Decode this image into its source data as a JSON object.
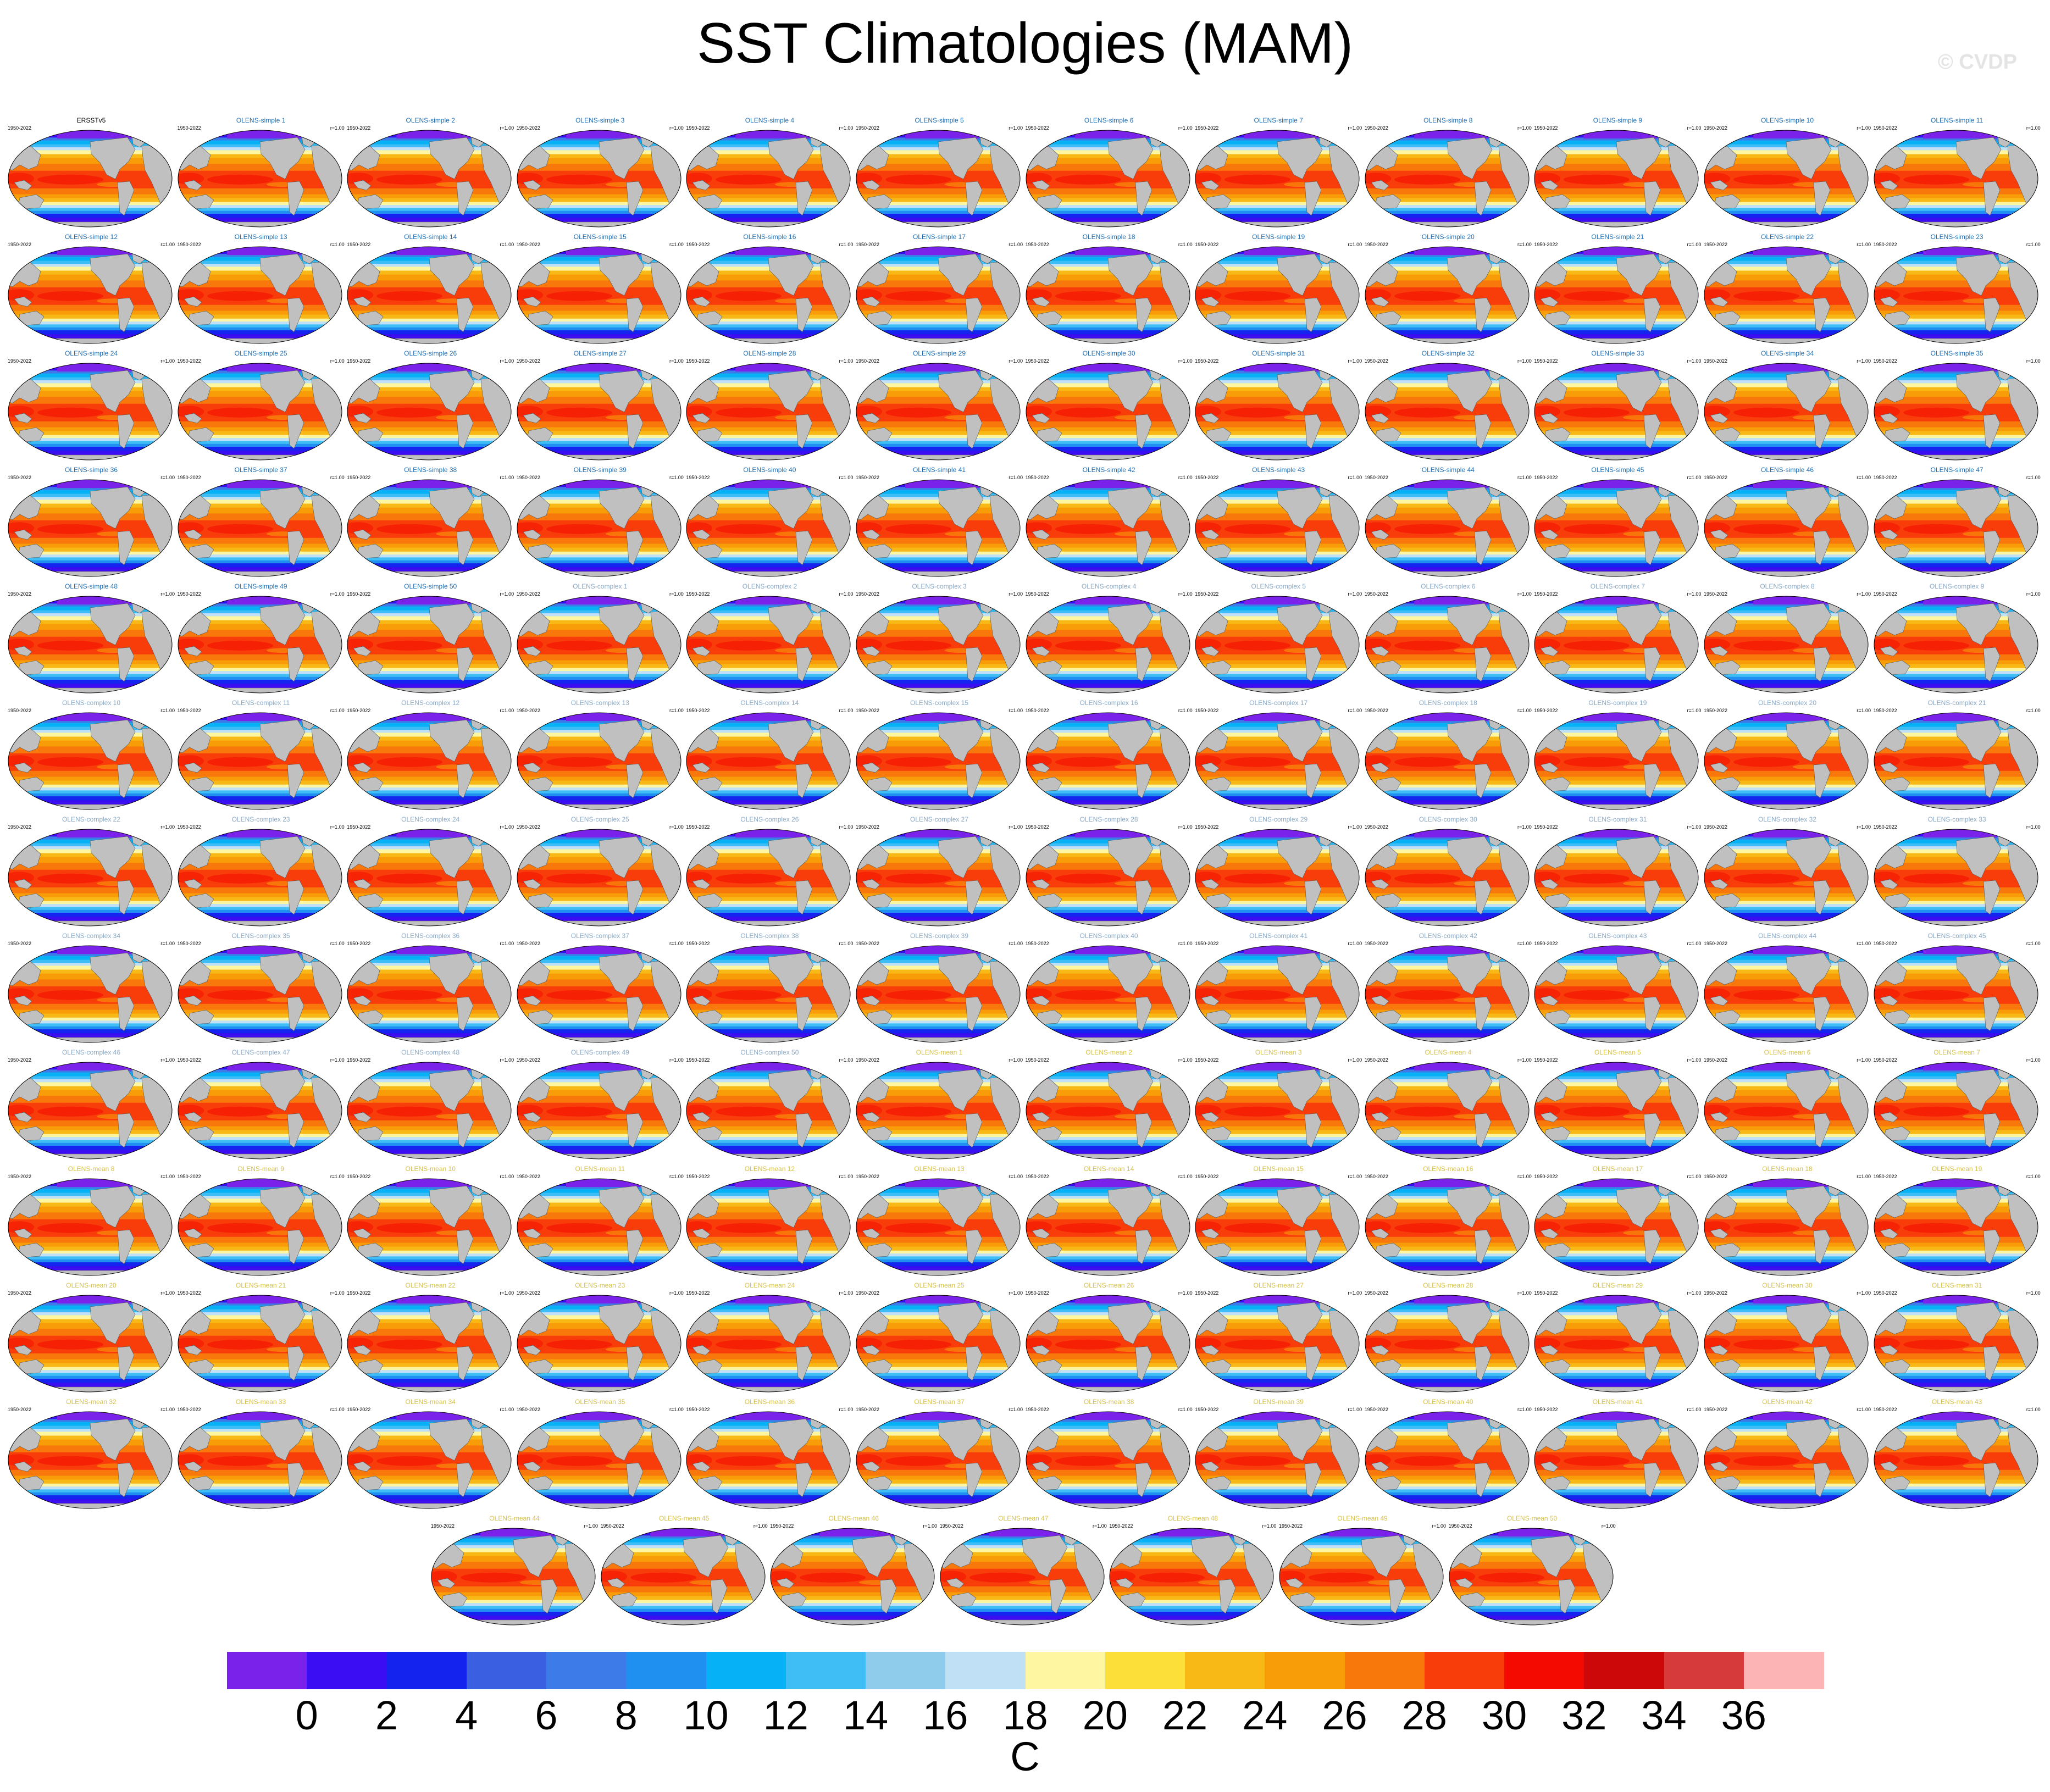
{
  "title": "SST Climatologies (MAM)",
  "watermark": "© CVDP",
  "chart_data": {
    "type": "heatmap",
    "title": "SST Climatologies (MAM)",
    "panel_years": "1950-2022",
    "panel_r": "r=1.00",
    "panel_title_colors": {
      "obs": "#000000",
      "simple": "#1f6fb5",
      "complex": "#8aa9c7",
      "mean": "#d7c24a"
    },
    "panels": [
      {
        "name": "ERSSTv5",
        "group": "obs",
        "r": ""
      },
      {
        "name": "OLENS-simple 1",
        "group": "simple"
      },
      {
        "name": "OLENS-simple 2",
        "group": "simple"
      },
      {
        "name": "OLENS-simple 3",
        "group": "simple"
      },
      {
        "name": "OLENS-simple 4",
        "group": "simple"
      },
      {
        "name": "OLENS-simple 5",
        "group": "simple"
      },
      {
        "name": "OLENS-simple 6",
        "group": "simple"
      },
      {
        "name": "OLENS-simple 7",
        "group": "simple"
      },
      {
        "name": "OLENS-simple 8",
        "group": "simple"
      },
      {
        "name": "OLENS-simple 9",
        "group": "simple"
      },
      {
        "name": "OLENS-simple 10",
        "group": "simple"
      },
      {
        "name": "OLENS-simple 11",
        "group": "simple"
      },
      {
        "name": "OLENS-simple 12",
        "group": "simple"
      },
      {
        "name": "OLENS-simple 13",
        "group": "simple"
      },
      {
        "name": "OLENS-simple 14",
        "group": "simple"
      },
      {
        "name": "OLENS-simple 15",
        "group": "simple"
      },
      {
        "name": "OLENS-simple 16",
        "group": "simple"
      },
      {
        "name": "OLENS-simple 17",
        "group": "simple"
      },
      {
        "name": "OLENS-simple 18",
        "group": "simple"
      },
      {
        "name": "OLENS-simple 19",
        "group": "simple"
      },
      {
        "name": "OLENS-simple 20",
        "group": "simple"
      },
      {
        "name": "OLENS-simple 21",
        "group": "simple"
      },
      {
        "name": "OLENS-simple 22",
        "group": "simple"
      },
      {
        "name": "OLENS-simple 23",
        "group": "simple"
      },
      {
        "name": "OLENS-simple 24",
        "group": "simple"
      },
      {
        "name": "OLENS-simple 25",
        "group": "simple"
      },
      {
        "name": "OLENS-simple 26",
        "group": "simple"
      },
      {
        "name": "OLENS-simple 27",
        "group": "simple"
      },
      {
        "name": "OLENS-simple 28",
        "group": "simple"
      },
      {
        "name": "OLENS-simple 29",
        "group": "simple"
      },
      {
        "name": "OLENS-simple 30",
        "group": "simple"
      },
      {
        "name": "OLENS-simple 31",
        "group": "simple"
      },
      {
        "name": "OLENS-simple 32",
        "group": "simple"
      },
      {
        "name": "OLENS-simple 33",
        "group": "simple"
      },
      {
        "name": "OLENS-simple 34",
        "group": "simple"
      },
      {
        "name": "OLENS-simple 35",
        "group": "simple"
      },
      {
        "name": "OLENS-simple 36",
        "group": "simple"
      },
      {
        "name": "OLENS-simple 37",
        "group": "simple"
      },
      {
        "name": "OLENS-simple 38",
        "group": "simple"
      },
      {
        "name": "OLENS-simple 39",
        "group": "simple"
      },
      {
        "name": "OLENS-simple 40",
        "group": "simple"
      },
      {
        "name": "OLENS-simple 41",
        "group": "simple"
      },
      {
        "name": "OLENS-simple 42",
        "group": "simple"
      },
      {
        "name": "OLENS-simple 43",
        "group": "simple"
      },
      {
        "name": "OLENS-simple 44",
        "group": "simple"
      },
      {
        "name": "OLENS-simple 45",
        "group": "simple"
      },
      {
        "name": "OLENS-simple 46",
        "group": "simple"
      },
      {
        "name": "OLENS-simple 47",
        "group": "simple"
      },
      {
        "name": "OLENS-simple 48",
        "group": "simple"
      },
      {
        "name": "OLENS-simple 49",
        "group": "simple"
      },
      {
        "name": "OLENS-simple 50",
        "group": "simple"
      },
      {
        "name": "OLENS-complex 1",
        "group": "complex"
      },
      {
        "name": "OLENS-complex 2",
        "group": "complex"
      },
      {
        "name": "OLENS-complex 3",
        "group": "complex"
      },
      {
        "name": "OLENS-complex 4",
        "group": "complex"
      },
      {
        "name": "OLENS-complex 5",
        "group": "complex"
      },
      {
        "name": "OLENS-complex 6",
        "group": "complex"
      },
      {
        "name": "OLENS-complex 7",
        "group": "complex"
      },
      {
        "name": "OLENS-complex 8",
        "group": "complex"
      },
      {
        "name": "OLENS-complex 9",
        "group": "complex"
      },
      {
        "name": "OLENS-complex 10",
        "group": "complex"
      },
      {
        "name": "OLENS-complex 11",
        "group": "complex"
      },
      {
        "name": "OLENS-complex 12",
        "group": "complex"
      },
      {
        "name": "OLENS-complex 13",
        "group": "complex"
      },
      {
        "name": "OLENS-complex 14",
        "group": "complex"
      },
      {
        "name": "OLENS-complex 15",
        "group": "complex"
      },
      {
        "name": "OLENS-complex 16",
        "group": "complex"
      },
      {
        "name": "OLENS-complex 17",
        "group": "complex"
      },
      {
        "name": "OLENS-complex 18",
        "group": "complex"
      },
      {
        "name": "OLENS-complex 19",
        "group": "complex"
      },
      {
        "name": "OLENS-complex 20",
        "group": "complex"
      },
      {
        "name": "OLENS-complex 21",
        "group": "complex"
      },
      {
        "name": "OLENS-complex 22",
        "group": "complex"
      },
      {
        "name": "OLENS-complex 23",
        "group": "complex"
      },
      {
        "name": "OLENS-complex 24",
        "group": "complex"
      },
      {
        "name": "OLENS-complex 25",
        "group": "complex"
      },
      {
        "name": "OLENS-complex 26",
        "group": "complex"
      },
      {
        "name": "OLENS-complex 27",
        "group": "complex"
      },
      {
        "name": "OLENS-complex 28",
        "group": "complex"
      },
      {
        "name": "OLENS-complex 29",
        "group": "complex"
      },
      {
        "name": "OLENS-complex 30",
        "group": "complex"
      },
      {
        "name": "OLENS-complex 31",
        "group": "complex"
      },
      {
        "name": "OLENS-complex 32",
        "group": "complex"
      },
      {
        "name": "OLENS-complex 33",
        "group": "complex"
      },
      {
        "name": "OLENS-complex 34",
        "group": "complex"
      },
      {
        "name": "OLENS-complex 35",
        "group": "complex"
      },
      {
        "name": "OLENS-complex 36",
        "group": "complex"
      },
      {
        "name": "OLENS-complex 37",
        "group": "complex"
      },
      {
        "name": "OLENS-complex 38",
        "group": "complex"
      },
      {
        "name": "OLENS-complex 39",
        "group": "complex"
      },
      {
        "name": "OLENS-complex 40",
        "group": "complex"
      },
      {
        "name": "OLENS-complex 41",
        "group": "complex"
      },
      {
        "name": "OLENS-complex 42",
        "group": "complex"
      },
      {
        "name": "OLENS-complex 43",
        "group": "complex"
      },
      {
        "name": "OLENS-complex 44",
        "group": "complex"
      },
      {
        "name": "OLENS-complex 45",
        "group": "complex"
      },
      {
        "name": "OLENS-complex 46",
        "group": "complex"
      },
      {
        "name": "OLENS-complex 47",
        "group": "complex"
      },
      {
        "name": "OLENS-complex 48",
        "group": "complex"
      },
      {
        "name": "OLENS-complex 49",
        "group": "complex"
      },
      {
        "name": "OLENS-complex 50",
        "group": "complex"
      },
      {
        "name": "OLENS-mean 1",
        "group": "mean"
      },
      {
        "name": "OLENS-mean 2",
        "group": "mean"
      },
      {
        "name": "OLENS-mean 3",
        "group": "mean"
      },
      {
        "name": "OLENS-mean 4",
        "group": "mean"
      },
      {
        "name": "OLENS-mean 5",
        "group": "mean"
      },
      {
        "name": "OLENS-mean 6",
        "group": "mean"
      },
      {
        "name": "OLENS-mean 7",
        "group": "mean"
      },
      {
        "name": "OLENS-mean 8",
        "group": "mean"
      },
      {
        "name": "OLENS-mean 9",
        "group": "mean"
      },
      {
        "name": "OLENS-mean 10",
        "group": "mean"
      },
      {
        "name": "OLENS-mean 11",
        "group": "mean"
      },
      {
        "name": "OLENS-mean 12",
        "group": "mean"
      },
      {
        "name": "OLENS-mean 13",
        "group": "mean"
      },
      {
        "name": "OLENS-mean 14",
        "group": "mean"
      },
      {
        "name": "OLENS-mean 15",
        "group": "mean"
      },
      {
        "name": "OLENS-mean 16",
        "group": "mean"
      },
      {
        "name": "OLENS-mean 17",
        "group": "mean"
      },
      {
        "name": "OLENS-mean 18",
        "group": "mean"
      },
      {
        "name": "OLENS-mean 19",
        "group": "mean"
      },
      {
        "name": "OLENS-mean 20",
        "group": "mean"
      },
      {
        "name": "OLENS-mean 21",
        "group": "mean"
      },
      {
        "name": "OLENS-mean 22",
        "group": "mean"
      },
      {
        "name": "OLENS-mean 23",
        "group": "mean"
      },
      {
        "name": "OLENS-mean 24",
        "group": "mean"
      },
      {
        "name": "OLENS-mean 25",
        "group": "mean"
      },
      {
        "name": "OLENS-mean 26",
        "group": "mean"
      },
      {
        "name": "OLENS-mean 27",
        "group": "mean"
      },
      {
        "name": "OLENS-mean 28",
        "group": "mean"
      },
      {
        "name": "OLENS-mean 29",
        "group": "mean"
      },
      {
        "name": "OLENS-mean 30",
        "group": "mean"
      },
      {
        "name": "OLENS-mean 31",
        "group": "mean"
      },
      {
        "name": "OLENS-mean 32",
        "group": "mean"
      },
      {
        "name": "OLENS-mean 33",
        "group": "mean"
      },
      {
        "name": "OLENS-mean 34",
        "group": "mean"
      },
      {
        "name": "OLENS-mean 35",
        "group": "mean"
      },
      {
        "name": "OLENS-mean 36",
        "group": "mean"
      },
      {
        "name": "OLENS-mean 37",
        "group": "mean"
      },
      {
        "name": "OLENS-mean 38",
        "group": "mean"
      },
      {
        "name": "OLENS-mean 39",
        "group": "mean"
      },
      {
        "name": "OLENS-mean 40",
        "group": "mean"
      },
      {
        "name": "OLENS-mean 41",
        "group": "mean"
      },
      {
        "name": "OLENS-mean 42",
        "group": "mean"
      },
      {
        "name": "OLENS-mean 43",
        "group": "mean"
      },
      {
        "name": "OLENS-mean 44",
        "group": "mean"
      },
      {
        "name": "OLENS-mean 45",
        "group": "mean"
      },
      {
        "name": "OLENS-mean 46",
        "group": "mean"
      },
      {
        "name": "OLENS-mean 47",
        "group": "mean"
      },
      {
        "name": "OLENS-mean 48",
        "group": "mean"
      },
      {
        "name": "OLENS-mean 49",
        "group": "mean"
      },
      {
        "name": "OLENS-mean 50",
        "group": "mean"
      }
    ],
    "colorbar": {
      "units": "C",
      "levels": [
        0,
        2,
        4,
        6,
        8,
        10,
        12,
        14,
        16,
        18,
        20,
        22,
        24,
        26,
        28,
        30,
        32,
        34,
        36
      ],
      "tick_labels": [
        "0",
        "2",
        "4",
        "6",
        "8",
        "10",
        "12",
        "14",
        "16",
        "18",
        "20",
        "22",
        "24",
        "26",
        "28",
        "30",
        "32",
        "34",
        "36"
      ],
      "colors": [
        "#7b22ea",
        "#3a0df2",
        "#1424ee",
        "#3a5fe0",
        "#3d7be8",
        "#1f8ff0",
        "#06b2f5",
        "#3fbef5",
        "#8fcbea",
        "#bfe0f5",
        "#fef6a0",
        "#fddf3a",
        "#f8b916",
        "#f89c08",
        "#f8780c",
        "#f83c0a",
        "#f40a00",
        "#cc0808",
        "#d63a3a",
        "#fcb4b4"
      ]
    },
    "land_color": "#c0c0c0"
  }
}
